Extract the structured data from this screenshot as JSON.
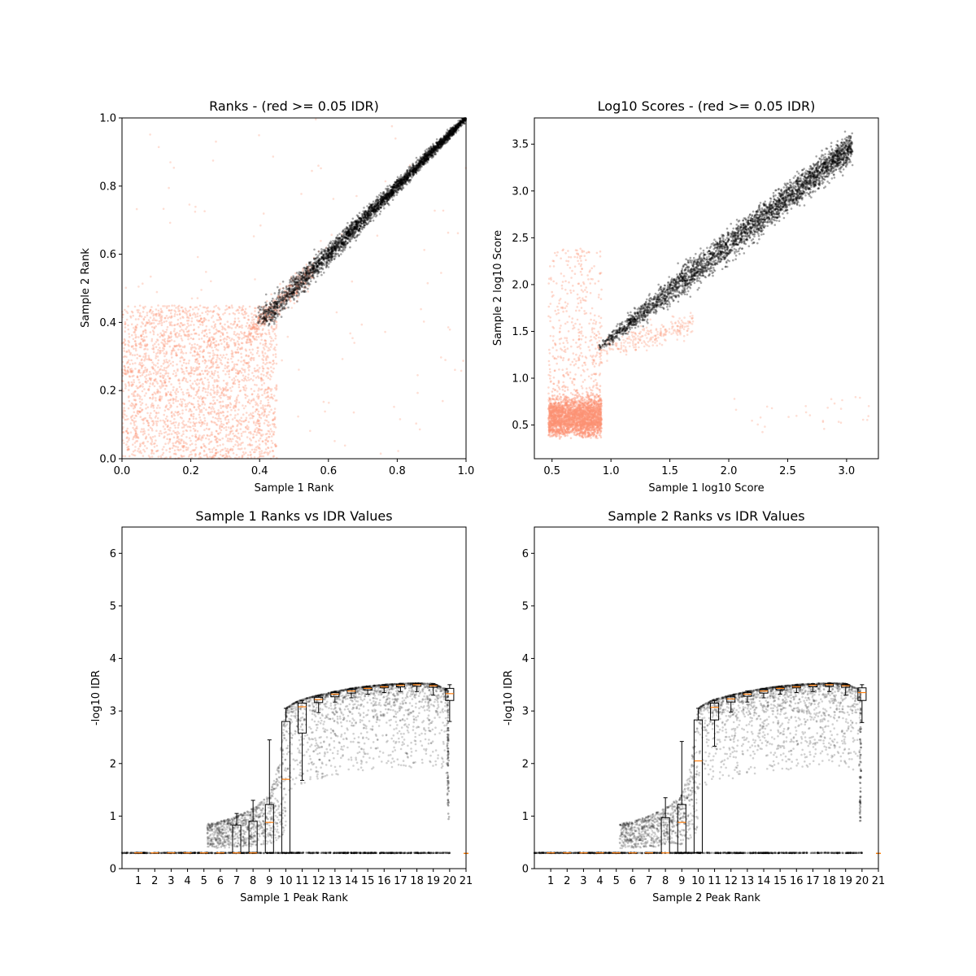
{
  "chart_data": [
    {
      "type": "scatter",
      "title": "Ranks - (red >= 0.05 IDR)",
      "xlabel": "Sample 1 Rank",
      "ylabel": "Sample 2 Rank",
      "xlim": [
        0,
        1
      ],
      "ylim": [
        0,
        1
      ],
      "xticks": [
        0.0,
        0.2,
        0.4,
        0.6,
        0.8,
        1.0
      ],
      "yticks": [
        0.0,
        0.2,
        0.4,
        0.6,
        0.8,
        1.0
      ],
      "xticklabels": [
        "0.0",
        "0.2",
        "0.4",
        "0.6",
        "0.8",
        "1.0"
      ],
      "yticklabels": [
        "0.0",
        "0.2",
        "0.4",
        "0.6",
        "0.8",
        "1.0"
      ],
      "grid": false,
      "colors": {
        "pass": "#000000",
        "fail": "#fc9272"
      },
      "series": [
        {
          "group": "fail",
          "x": [
            0.02,
            0.05,
            0.08,
            0.12,
            0.15,
            0.18,
            0.22,
            0.25,
            0.28,
            0.3,
            0.33,
            0.36,
            0.38,
            0.41,
            0.44,
            0.46,
            0.05,
            0.1,
            0.2,
            0.3,
            0.4,
            0.12,
            0.26,
            0.35,
            0.45,
            0.5,
            0.08,
            0.3,
            0.15,
            0.42,
            0.55,
            0.92,
            0.85,
            0.6
          ],
          "y": [
            0.03,
            0.12,
            0.25,
            0.08,
            0.31,
            0.18,
            0.05,
            0.27,
            0.14,
            0.36,
            0.22,
            0.09,
            0.33,
            0.41,
            0.38,
            0.2,
            0.4,
            0.35,
            0.29,
            0.02,
            0.15,
            0.6,
            0.75,
            0.55,
            0.45,
            0.42,
            0.95,
            0.85,
            0.5,
            0.48,
            0.44,
            0.3,
            0.1,
            0.02
          ]
        },
        {
          "group": "pass",
          "x": [
            0.4,
            0.45,
            0.5,
            0.55,
            0.6,
            0.65,
            0.7,
            0.75,
            0.8,
            0.85,
            0.9,
            0.95,
            1.0
          ],
          "y": [
            0.4,
            0.46,
            0.52,
            0.57,
            0.61,
            0.66,
            0.71,
            0.75,
            0.8,
            0.85,
            0.9,
            0.95,
            1.0
          ]
        }
      ]
    },
    {
      "type": "scatter",
      "title": "Log10 Scores - (red >= 0.05 IDR)",
      "xlabel": "Sample 1 log10 Score",
      "ylabel": "Sample 2 log10 Score",
      "xlim": [
        0.35,
        3.27
      ],
      "ylim": [
        0.14,
        3.78
      ],
      "xticks": [
        0.5,
        1.0,
        1.5,
        2.0,
        2.5,
        3.0
      ],
      "yticks": [
        0.5,
        1.0,
        1.5,
        2.0,
        2.5,
        3.0,
        3.5
      ],
      "xticklabels": [
        "0.5",
        "1.0",
        "1.5",
        "2.0",
        "2.5",
        "3.0"
      ],
      "yticklabels": [
        "0.5",
        "1.0",
        "1.5",
        "2.0",
        "2.5",
        "3.0",
        "3.5"
      ],
      "grid": false,
      "colors": {
        "pass": "#000000",
        "fail": "#fc9272"
      },
      "series": [
        {
          "group": "fail",
          "x": [
            0.5,
            0.55,
            0.6,
            0.65,
            0.7,
            0.75,
            0.8,
            0.6,
            0.7,
            0.55,
            0.65,
            0.75,
            0.9,
            1.0,
            1.2,
            1.5,
            0.7,
            0.62,
            2.5,
            2.7
          ],
          "y": [
            0.45,
            0.55,
            0.6,
            0.5,
            0.65,
            0.55,
            0.6,
            1.2,
            1.6,
            0.9,
            2.0,
            2.8,
            1.0,
            1.3,
            1.4,
            1.5,
            3.2,
            2.5,
            0.6,
            0.55
          ]
        },
        {
          "group": "pass",
          "x": [
            0.9,
            1.0,
            1.2,
            1.4,
            1.6,
            1.8,
            2.0,
            2.2,
            2.4,
            2.6,
            2.8,
            3.0
          ],
          "y": [
            1.35,
            1.55,
            1.8,
            2.0,
            2.2,
            2.4,
            2.55,
            2.75,
            2.9,
            3.05,
            3.25,
            3.45
          ]
        }
      ]
    },
    {
      "type": "box",
      "title": "Sample 1 Ranks vs IDR Values",
      "xlabel": "Sample 1 Peak Rank",
      "ylabel": "-log10 IDR",
      "xlim": [
        0,
        21
      ],
      "ylim": [
        0,
        6.5
      ],
      "xticklabels": [
        "1",
        "2",
        "3",
        "4",
        "5",
        "6",
        "7",
        "8",
        "9",
        "10",
        "11",
        "12",
        "13",
        "14",
        "15",
        "16",
        "17",
        "18",
        "19",
        "20",
        "21"
      ],
      "yticks": [
        0,
        1,
        2,
        3,
        4,
        5,
        6
      ],
      "yticklabels": [
        "0",
        "1",
        "2",
        "3",
        "4",
        "5",
        "6"
      ],
      "grid": false,
      "colors": {
        "points": "#000000",
        "box": "#000000",
        "median": "#ff7f0e"
      },
      "baseline": 0.3,
      "curve": {
        "x": [
          5.2,
          6,
          7,
          8,
          9,
          9.5,
          10,
          10.5,
          11,
          12,
          13,
          14,
          15,
          16,
          17,
          18,
          19,
          19.9
        ],
        "y": [
          0.85,
          0.9,
          1.0,
          1.15,
          1.4,
          1.9,
          3.05,
          3.15,
          3.22,
          3.3,
          3.37,
          3.43,
          3.47,
          3.5,
          3.52,
          3.53,
          3.52,
          3.4
        ]
      },
      "boxes": [
        {
          "pos": 1,
          "whislo": 0.3,
          "q1": 0.3,
          "med": 0.3,
          "q3": 0.3,
          "whishi": 0.3
        },
        {
          "pos": 2,
          "whislo": 0.3,
          "q1": 0.3,
          "med": 0.3,
          "q3": 0.3,
          "whishi": 0.3
        },
        {
          "pos": 3,
          "whislo": 0.3,
          "q1": 0.3,
          "med": 0.3,
          "q3": 0.3,
          "whishi": 0.3
        },
        {
          "pos": 4,
          "whislo": 0.3,
          "q1": 0.3,
          "med": 0.3,
          "q3": 0.3,
          "whishi": 0.3
        },
        {
          "pos": 5,
          "whislo": 0.3,
          "q1": 0.3,
          "med": 0.3,
          "q3": 0.3,
          "whishi": 0.3
        },
        {
          "pos": 6,
          "whislo": 0.3,
          "q1": 0.3,
          "med": 0.3,
          "q3": 0.3,
          "whishi": 0.3
        },
        {
          "pos": 7,
          "whislo": 0.3,
          "q1": 0.3,
          "med": 0.3,
          "q3": 0.83,
          "whishi": 1.05
        },
        {
          "pos": 8,
          "whislo": 0.3,
          "q1": 0.3,
          "med": 0.3,
          "q3": 0.9,
          "whishi": 1.3
        },
        {
          "pos": 9,
          "whislo": 0.3,
          "q1": 0.3,
          "med": 0.88,
          "q3": 1.22,
          "whishi": 2.45
        },
        {
          "pos": 10,
          "whislo": 0.3,
          "q1": 0.3,
          "med": 1.7,
          "q3": 2.8,
          "whishi": 3.05
        },
        {
          "pos": 11,
          "whislo": 1.68,
          "q1": 2.58,
          "med": 3.08,
          "q3": 3.15,
          "whishi": 3.2
        },
        {
          "pos": 12,
          "whislo": 2.97,
          "q1": 3.16,
          "med": 3.22,
          "q3": 3.26,
          "whishi": 3.29
        },
        {
          "pos": 13,
          "whislo": 3.17,
          "q1": 3.27,
          "med": 3.32,
          "q3": 3.35,
          "whishi": 3.37
        },
        {
          "pos": 14,
          "whislo": 3.25,
          "q1": 3.34,
          "med": 3.38,
          "q3": 3.41,
          "whishi": 3.43
        },
        {
          "pos": 15,
          "whislo": 3.32,
          "q1": 3.4,
          "med": 3.43,
          "q3": 3.45,
          "whishi": 3.47
        },
        {
          "pos": 16,
          "whislo": 3.35,
          "q1": 3.44,
          "med": 3.46,
          "q3": 3.48,
          "whishi": 3.5
        },
        {
          "pos": 17,
          "whislo": 3.37,
          "q1": 3.46,
          "med": 3.49,
          "q3": 3.51,
          "whishi": 3.52
        },
        {
          "pos": 18,
          "whislo": 3.37,
          "q1": 3.47,
          "med": 3.5,
          "q3": 3.52,
          "whishi": 3.53
        },
        {
          "pos": 19,
          "whislo": 3.3,
          "q1": 3.45,
          "med": 3.48,
          "q3": 3.5,
          "whishi": 3.52
        },
        {
          "pos": 20,
          "whislo": 2.8,
          "q1": 3.2,
          "med": 3.33,
          "q3": 3.43,
          "whishi": 3.5
        }
      ],
      "fliers": [
        {
          "x": 21,
          "y": 0.29
        }
      ]
    },
    {
      "type": "box",
      "title": "Sample 2 Ranks vs IDR Values",
      "xlabel": "Sample 2 Peak Rank",
      "ylabel": "-log10 IDR",
      "xlim": [
        0,
        21
      ],
      "ylim": [
        0,
        6.5
      ],
      "xticklabels": [
        "1",
        "2",
        "3",
        "4",
        "5",
        "6",
        "7",
        "8",
        "9",
        "10",
        "11",
        "12",
        "13",
        "14",
        "15",
        "16",
        "17",
        "18",
        "19",
        "20",
        "21"
      ],
      "yticks": [
        0,
        1,
        2,
        3,
        4,
        5,
        6
      ],
      "yticklabels": [
        "0",
        "1",
        "2",
        "3",
        "4",
        "5",
        "6"
      ],
      "grid": false,
      "colors": {
        "points": "#000000",
        "box": "#000000",
        "median": "#ff7f0e"
      },
      "baseline": 0.3,
      "curve": {
        "x": [
          5.2,
          6,
          7,
          8,
          9,
          9.5,
          10,
          10.5,
          11,
          12,
          13,
          14,
          15,
          16,
          17,
          18,
          19,
          19.9
        ],
        "y": [
          0.85,
          0.9,
          1.0,
          1.15,
          1.4,
          1.9,
          3.05,
          3.15,
          3.22,
          3.3,
          3.37,
          3.43,
          3.47,
          3.5,
          3.52,
          3.53,
          3.52,
          3.4
        ]
      },
      "boxes": [
        {
          "pos": 1,
          "whislo": 0.3,
          "q1": 0.3,
          "med": 0.3,
          "q3": 0.3,
          "whishi": 0.3
        },
        {
          "pos": 2,
          "whislo": 0.3,
          "q1": 0.3,
          "med": 0.3,
          "q3": 0.3,
          "whishi": 0.3
        },
        {
          "pos": 3,
          "whislo": 0.3,
          "q1": 0.3,
          "med": 0.3,
          "q3": 0.3,
          "whishi": 0.3
        },
        {
          "pos": 4,
          "whislo": 0.3,
          "q1": 0.3,
          "med": 0.3,
          "q3": 0.3,
          "whishi": 0.3
        },
        {
          "pos": 5,
          "whislo": 0.3,
          "q1": 0.3,
          "med": 0.3,
          "q3": 0.3,
          "whishi": 0.3
        },
        {
          "pos": 6,
          "whislo": 0.3,
          "q1": 0.3,
          "med": 0.3,
          "q3": 0.3,
          "whishi": 0.3
        },
        {
          "pos": 7,
          "whislo": 0.3,
          "q1": 0.3,
          "med": 0.3,
          "q3": 0.3,
          "whishi": 0.3
        },
        {
          "pos": 8,
          "whislo": 0.3,
          "q1": 0.3,
          "med": 0.3,
          "q3": 0.97,
          "whishi": 1.35
        },
        {
          "pos": 9,
          "whislo": 0.3,
          "q1": 0.3,
          "med": 0.88,
          "q3": 1.22,
          "whishi": 2.42
        },
        {
          "pos": 10,
          "whislo": 0.3,
          "q1": 0.3,
          "med": 2.05,
          "q3": 2.83,
          "whishi": 3.05
        },
        {
          "pos": 11,
          "whislo": 2.33,
          "q1": 2.83,
          "med": 3.07,
          "q3": 3.15,
          "whishi": 3.2
        },
        {
          "pos": 12,
          "whislo": 2.98,
          "q1": 3.17,
          "med": 3.23,
          "q3": 3.27,
          "whishi": 3.3
        },
        {
          "pos": 13,
          "whislo": 3.17,
          "q1": 3.28,
          "med": 3.32,
          "q3": 3.35,
          "whishi": 3.38
        },
        {
          "pos": 14,
          "whislo": 3.25,
          "q1": 3.34,
          "med": 3.38,
          "q3": 3.41,
          "whishi": 3.43
        },
        {
          "pos": 15,
          "whislo": 3.32,
          "q1": 3.4,
          "med": 3.43,
          "q3": 3.45,
          "whishi": 3.47
        },
        {
          "pos": 16,
          "whislo": 3.35,
          "q1": 3.44,
          "med": 3.46,
          "q3": 3.48,
          "whishi": 3.5
        },
        {
          "pos": 17,
          "whislo": 3.37,
          "q1": 3.46,
          "med": 3.49,
          "q3": 3.51,
          "whishi": 3.52
        },
        {
          "pos": 18,
          "whislo": 3.37,
          "q1": 3.47,
          "med": 3.5,
          "q3": 3.52,
          "whishi": 3.53
        },
        {
          "pos": 19,
          "whislo": 3.3,
          "q1": 3.45,
          "med": 3.48,
          "q3": 3.5,
          "whishi": 3.52
        },
        {
          "pos": 20,
          "whislo": 2.78,
          "q1": 3.2,
          "med": 3.35,
          "q3": 3.44,
          "whishi": 3.5
        }
      ],
      "fliers": [
        {
          "x": 21,
          "y": 0.29
        }
      ]
    }
  ]
}
